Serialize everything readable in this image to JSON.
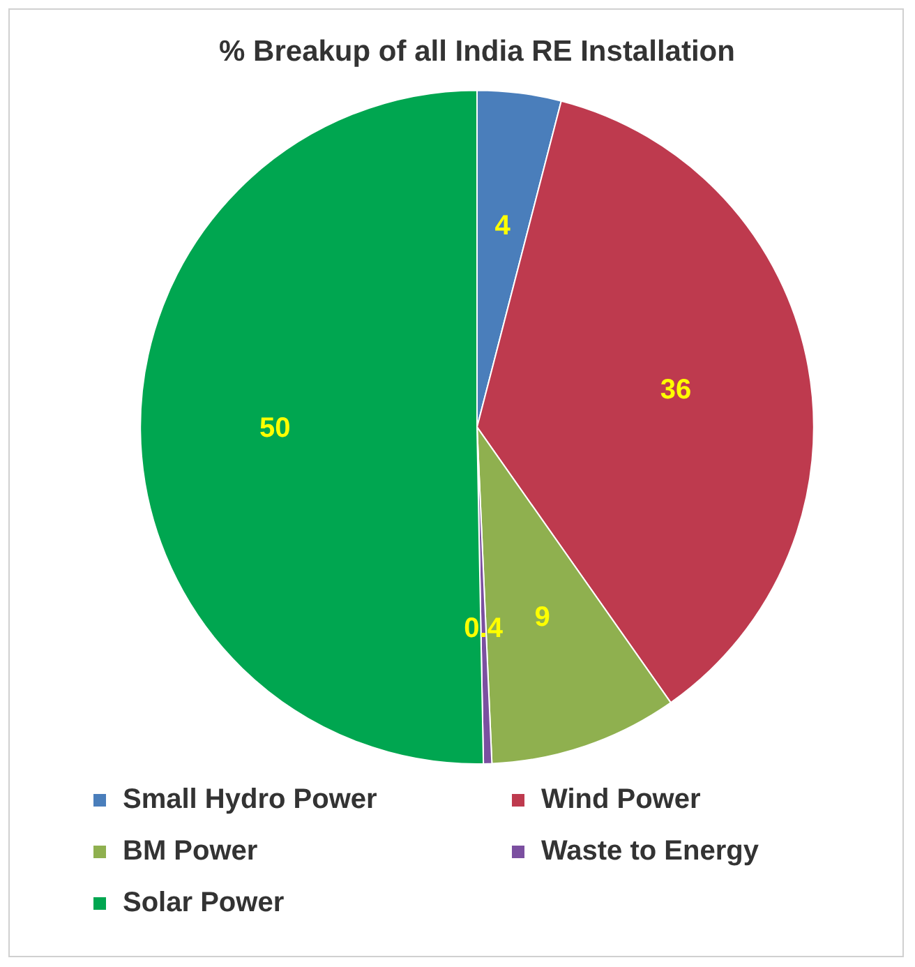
{
  "chart_data": {
    "type": "pie",
    "title": "% Breakup of all India RE Installation",
    "categories": [
      "Small Hydro Power",
      "Wind Power",
      "BM Power",
      "Waste to Energy",
      "Solar Power"
    ],
    "values": [
      4,
      36,
      9,
      0.4,
      50
    ],
    "colors": [
      "#4a7ebb",
      "#be3a4e",
      "#8fb04f",
      "#7b4fa0",
      "#00a650"
    ],
    "data_labels": true,
    "legend": "bottom"
  }
}
